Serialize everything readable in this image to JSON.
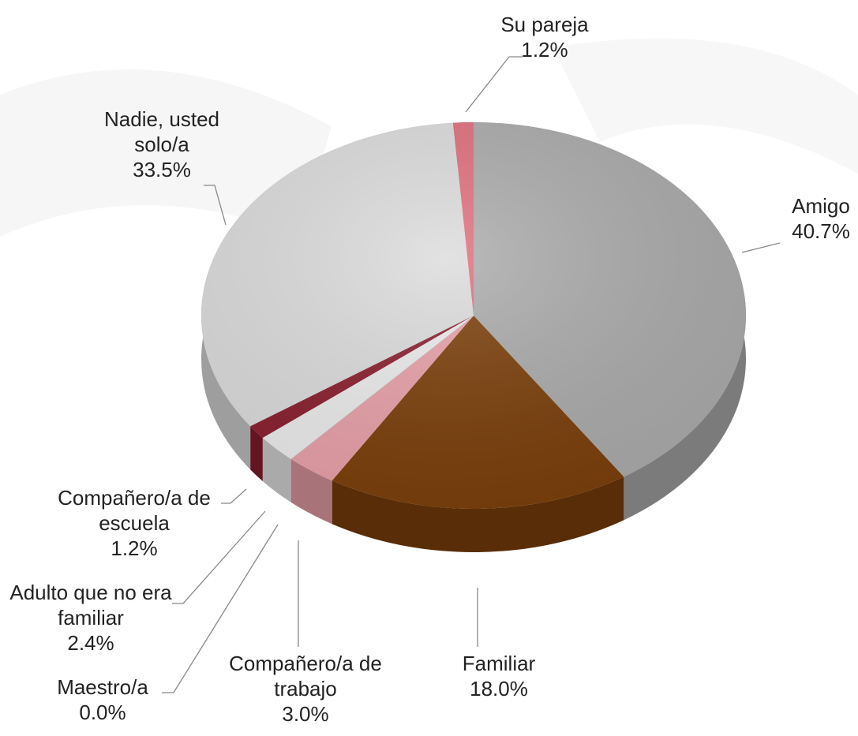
{
  "chart_data": {
    "type": "pie",
    "categories": [
      "Amigo",
      "Familiar",
      "Compañero/a de trabajo",
      "Maestro/a",
      "Adulto que no era familiar",
      "Compañero/a de escuela",
      "Nadie, usted solo/a",
      "Su pareja"
    ],
    "values": [
      40.7,
      18.0,
      3.0,
      0.0,
      2.4,
      1.2,
      33.5,
      1.2
    ],
    "value_labels": [
      "40.7%",
      "18.0%",
      "3.0%",
      "0.0%",
      "2.4%",
      "1.2%",
      "33.5%",
      "1.2%"
    ],
    "colors": [
      "#ababab",
      "#7b3f0a",
      "#e9a1a9",
      "#c9c9c9",
      "#ececec",
      "#8a1f2f",
      "#dcdcdc",
      "#e06f7d"
    ]
  }
}
